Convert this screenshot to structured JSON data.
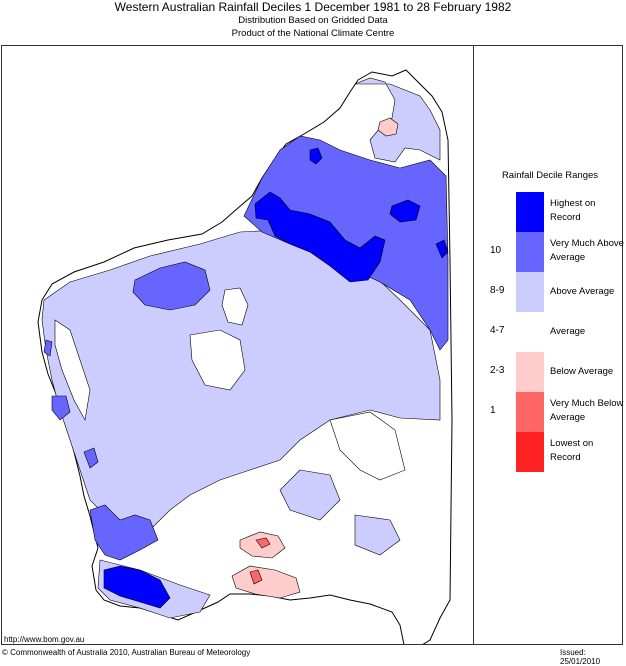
{
  "title": "Western Australian Rainfall Deciles     1 December 1981 to 28 February 1982",
  "subtitle_line1": "Distribution Based on Gridded Data",
  "subtitle_line2": "Product of the National Climate Centre",
  "legend": {
    "title": "Rainfall Decile Ranges",
    "items": [
      {
        "range": "",
        "label": "Highest on Record",
        "color": "#0000ff"
      },
      {
        "range": "10",
        "label": "Very Much Above Average",
        "color": "#6666ff"
      },
      {
        "range": "8-9",
        "label": "Above Average",
        "color": "#ccccff"
      },
      {
        "range": "4-7",
        "label": "Average",
        "color": "#ffffff"
      },
      {
        "range": "2-3",
        "label": "Below Average",
        "color": "#ffcccc"
      },
      {
        "range": "1",
        "label": "Very Much Below Average",
        "color": "#ff6666"
      },
      {
        "range": "",
        "label": "Lowest on Record",
        "color": "#ff2222"
      }
    ]
  },
  "footer": {
    "url": "http://www.bom.gov.au",
    "copyright": "© Commonwealth of Australia 2010, Australian Bureau of Meteorology",
    "issued": "Issued: 25/01/2010"
  }
}
